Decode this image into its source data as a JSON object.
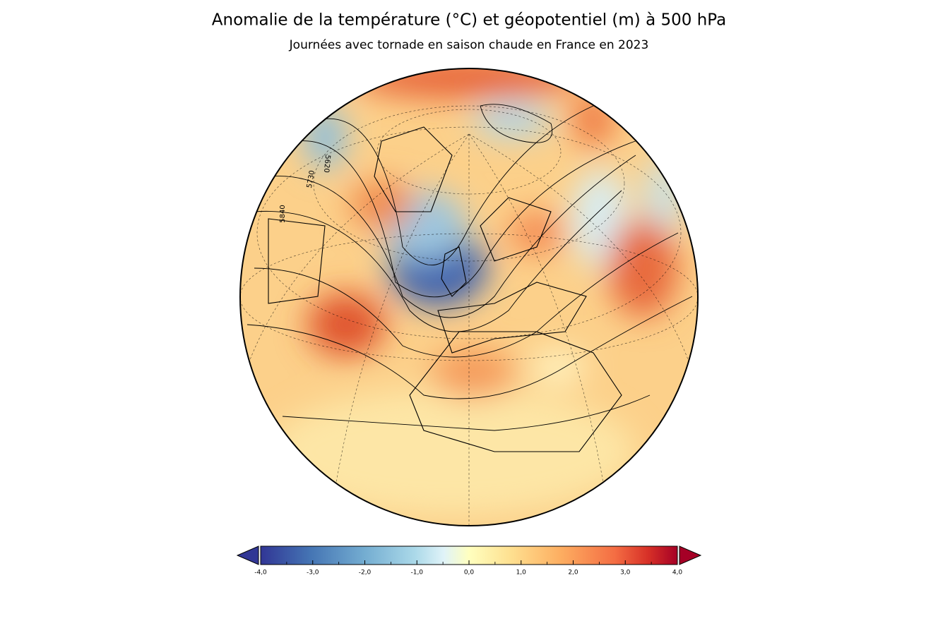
{
  "header": {
    "title": "Anomalie de la température (°C) et géopotentiel (m) à 500 hPa",
    "subtitle": "Journées avec tornade en saison chaude en France en 2023"
  },
  "map": {
    "contour_labels": [
      "5840",
      "5730",
      "5620"
    ]
  },
  "colorbar": {
    "range": [
      -4,
      4
    ],
    "ticks": [
      {
        "value": -4,
        "label": "-4,0"
      },
      {
        "value": -3,
        "label": "-3,0"
      },
      {
        "value": -2,
        "label": "-2,0"
      },
      {
        "value": -1,
        "label": "-1,0"
      },
      {
        "value": 0,
        "label": "0,0"
      },
      {
        "value": 1,
        "label": "1,0"
      },
      {
        "value": 2,
        "label": "2,0"
      },
      {
        "value": 3,
        "label": "3,0"
      },
      {
        "value": 4,
        "label": "4,0"
      }
    ],
    "minor_step": 0.5
  }
}
